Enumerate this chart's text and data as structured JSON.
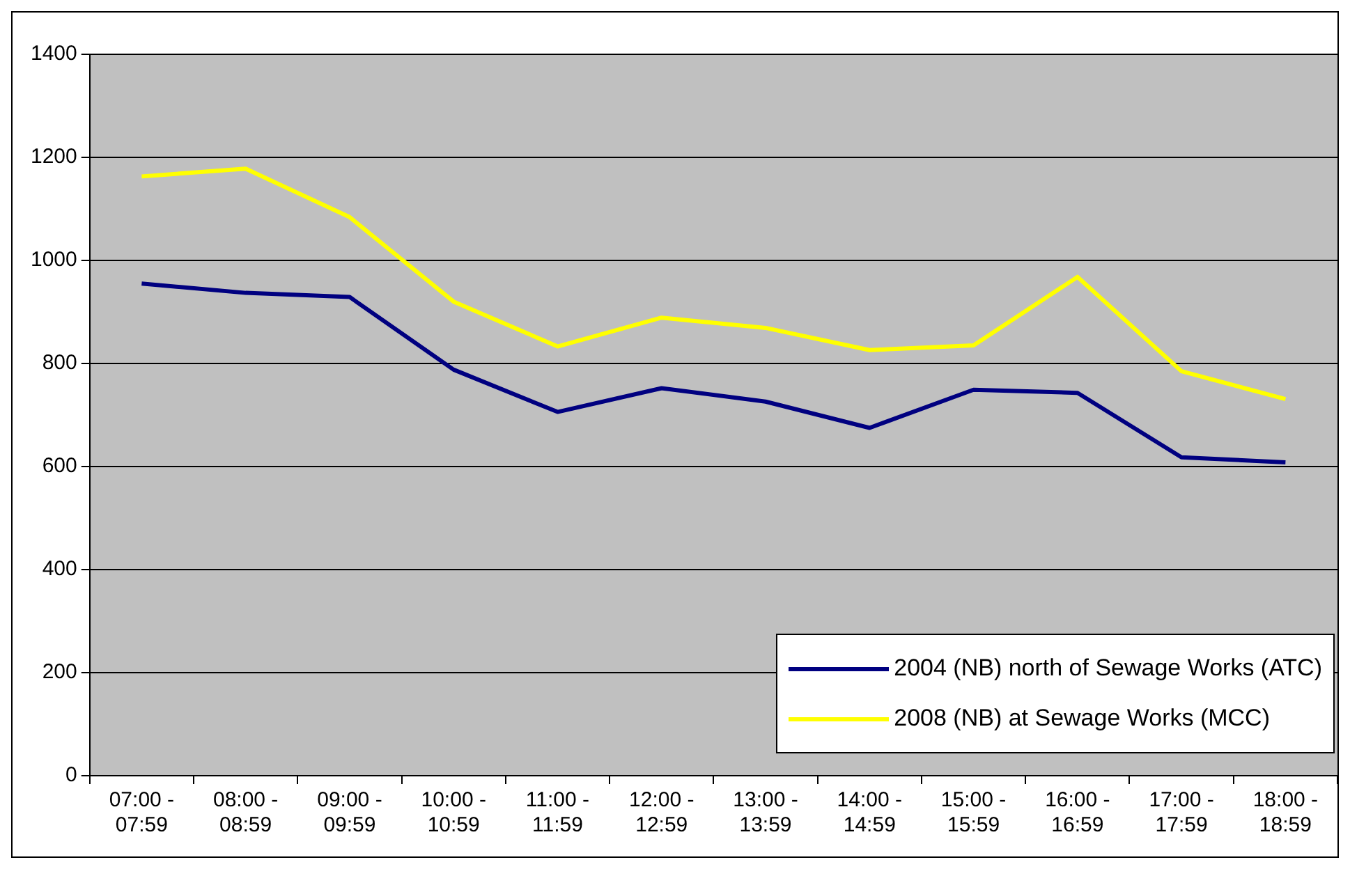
{
  "chart_data": {
    "type": "line",
    "categories": [
      "07:00 - 07:59",
      "08:00 - 08:59",
      "09:00 - 09:59",
      "10:00 - 10:59",
      "11:00 - 11:59",
      "12:00 - 12:59",
      "13:00 - 13:59",
      "14:00 - 14:59",
      "15:00 - 15:59",
      "16:00 - 16:59",
      "17:00 - 17:59",
      "18:00 - 18:59"
    ],
    "series": [
      {
        "name": "2004 (NB) north of Sewage Works (ATC)",
        "color": "#000080",
        "values": [
          955,
          937,
          929,
          788,
          706,
          752,
          726,
          675,
          749,
          743,
          618,
          608
        ]
      },
      {
        "name": "2008 (NB) at Sewage Works (MCC)",
        "color": "#ffff00",
        "values": [
          1163,
          1178,
          1084,
          920,
          833,
          889,
          869,
          826,
          835,
          968,
          785,
          731
        ]
      }
    ],
    "ylim": [
      0,
      1400
    ],
    "yticks": [
      0,
      200,
      400,
      600,
      800,
      1000,
      1200,
      1400
    ],
    "grid": "y",
    "legend": "bottom right",
    "marker": "none",
    "line_style": "solid"
  }
}
